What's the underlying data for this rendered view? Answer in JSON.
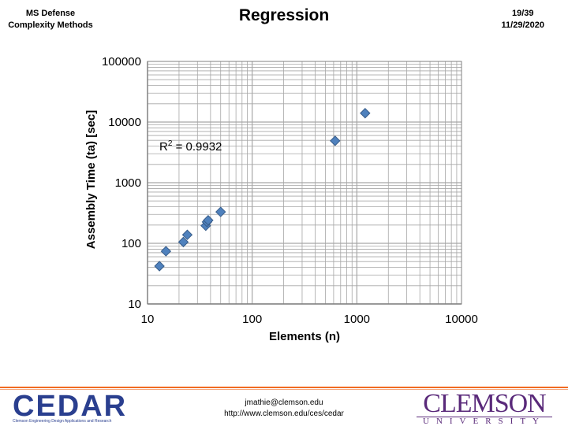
{
  "header": {
    "left_line1": "MS Defense",
    "left_line2": "Complexity Methods",
    "title": "Regression",
    "slide_number": "19/39",
    "date": "11/29/2020"
  },
  "footer": {
    "email": "jmathie@clemson.edu",
    "url": "http://www.clemson.edu/ces/cedar",
    "cedar_logo_text": "CEDAR",
    "cedar_logo_subtext": "Clemson Engineering Design Applications and Research",
    "clemson_logo_text": "CLEMSON",
    "clemson_logo_subtext": "UNIVERSITY"
  },
  "colors": {
    "marker_fill": "#4f81bd",
    "marker_stroke": "#385d8a",
    "grid": "#a6a6a6",
    "footer_rule": "#f26b21"
  },
  "chart_data": {
    "type": "scatter",
    "xscale": "log",
    "yscale": "log",
    "xlim": [
      10,
      10000
    ],
    "ylim": [
      10,
      100000
    ],
    "xlabel": "Elements (n)",
    "ylabel": "Assembly Time  (ta) [sec]",
    "x_tick_labels": [
      "10",
      "100",
      "1000",
      "10000"
    ],
    "y_tick_labels": [
      "10",
      "100",
      "1000",
      "10000",
      "100000"
    ],
    "annotation_prefix": "R",
    "annotation_sup": "2",
    "annotation_suffix": " = 0.9932",
    "grid": true,
    "legend": "none",
    "marker": "diamond",
    "points": [
      {
        "x": 13,
        "y": 42
      },
      {
        "x": 15,
        "y": 74
      },
      {
        "x": 22,
        "y": 105
      },
      {
        "x": 24,
        "y": 138
      },
      {
        "x": 36,
        "y": 195
      },
      {
        "x": 37,
        "y": 225
      },
      {
        "x": 38,
        "y": 240
      },
      {
        "x": 50,
        "y": 330
      },
      {
        "x": 620,
        "y": 4900
      },
      {
        "x": 1200,
        "y": 14000
      }
    ]
  }
}
